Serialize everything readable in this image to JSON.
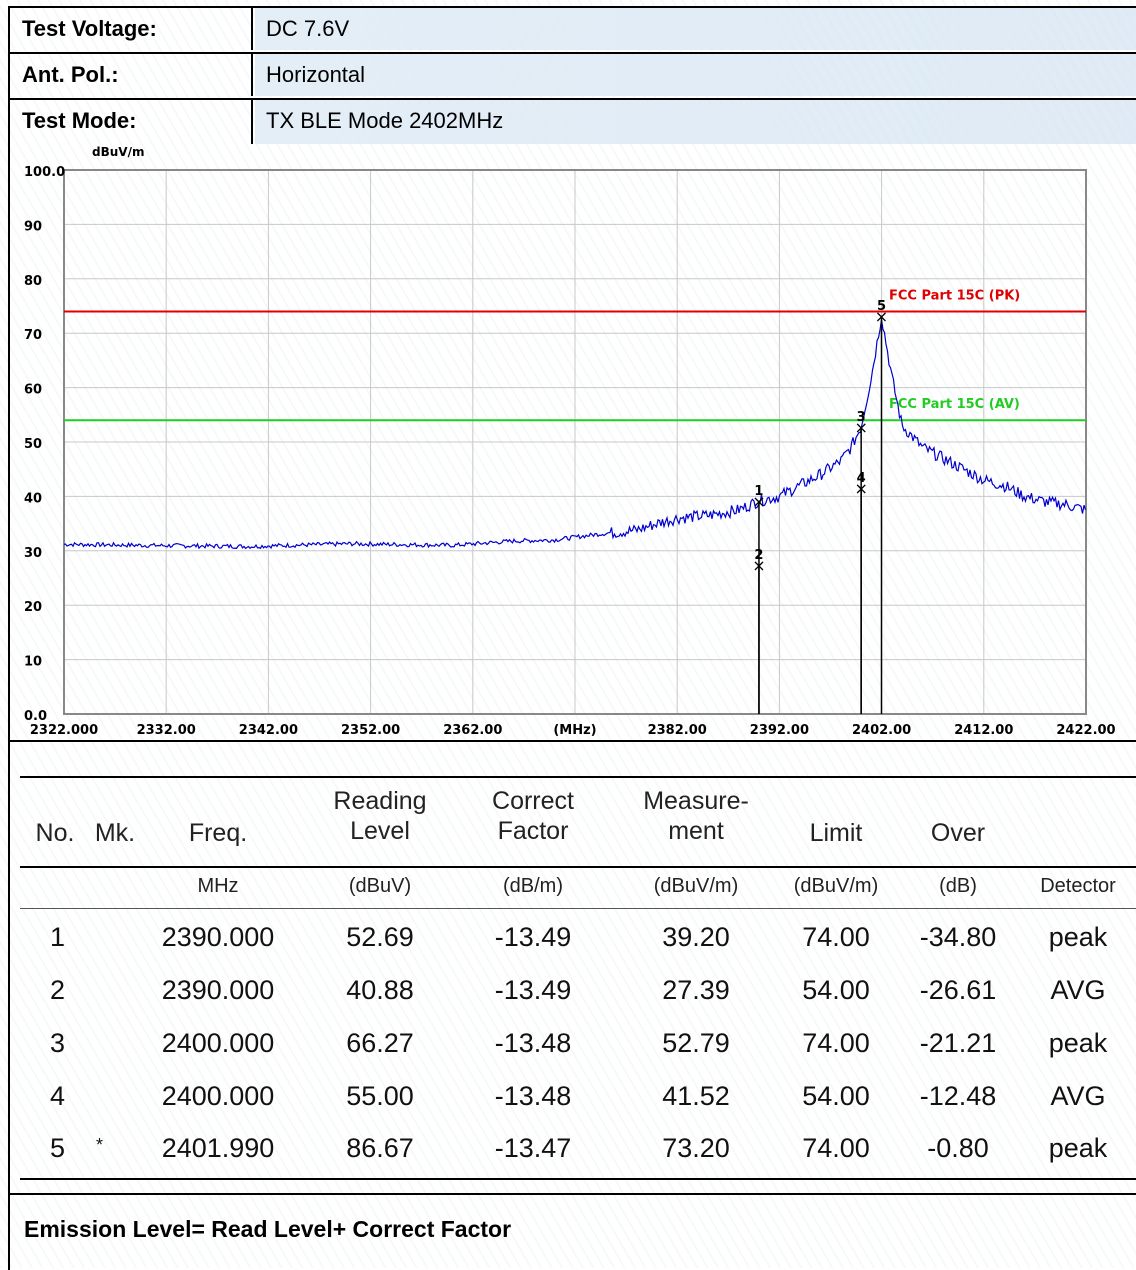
{
  "header": {
    "rows": [
      {
        "label": "Test Voltage:",
        "value": "DC 7.6V"
      },
      {
        "label": "Ant. Pol.:",
        "value": "Horizontal"
      },
      {
        "label": "Test Mode:",
        "value": "TX BLE Mode 2402MHz"
      }
    ]
  },
  "chart_data": {
    "type": "line",
    "yunit": "dBuV/m",
    "xunit": "(MHz)",
    "ylim": [
      0,
      100
    ],
    "xlim": [
      2322,
      2422
    ],
    "y_ticks": [
      "0.0",
      "10",
      "20",
      "30",
      "40",
      "50",
      "60",
      "70",
      "80",
      "90",
      "100.0"
    ],
    "x_ticks": [
      "2322.000",
      "2332.00",
      "2342.00",
      "2352.00",
      "2362.00",
      "(MHz)",
      "2382.00",
      "2392.00",
      "2402.00",
      "2412.00",
      "2422.00"
    ],
    "grid": true,
    "limit_lines": [
      {
        "name": "FCC Part 15C (PK)",
        "value": 74,
        "color": "#e00000"
      },
      {
        "name": "FCC Part 15C (AV)",
        "value": 54,
        "color": "#22cc22"
      }
    ],
    "series": [
      {
        "color": "#0000cc",
        "x": [
          2322,
          2330,
          2340,
          2350,
          2360,
          2366,
          2370,
          2374,
          2378,
          2380,
          2382,
          2385,
          2388,
          2390,
          2392,
          2394,
          2396,
          2398,
          2399,
          2400,
          2401,
          2401.99,
          2403,
          2404,
          2406,
          2408,
          2410,
          2412,
          2414,
          2416,
          2418,
          2420,
          2422
        ],
        "y": [
          31.2,
          31.0,
          30.8,
          31.3,
          31.0,
          31.8,
          32.0,
          33.0,
          33.8,
          35.0,
          36.0,
          36.5,
          37.5,
          39.2,
          40.0,
          42.0,
          44.0,
          46.5,
          49.0,
          52.8,
          62.0,
          73.2,
          62.0,
          53.0,
          49.0,
          47.0,
          45.0,
          43.0,
          42.0,
          40.0,
          39.0,
          38.5,
          37.5
        ]
      }
    ],
    "markers": [
      {
        "label": "1",
        "x": 2390.0,
        "y": 39.2
      },
      {
        "label": "2",
        "x": 2390.0,
        "y": 27.39
      },
      {
        "label": "3",
        "x": 2400.0,
        "y": 52.79
      },
      {
        "label": "4",
        "x": 2400.0,
        "y": 41.52
      },
      {
        "label": "5",
        "x": 2401.99,
        "y": 73.2
      }
    ]
  },
  "table": {
    "headers": [
      "No.",
      "Mk.",
      "Freq.",
      "Reading\nLevel",
      "Correct\nFactor",
      "Measure-\nment",
      "Limit",
      "Over",
      ""
    ],
    "units": [
      "",
      "",
      "MHz",
      "(dBuV)",
      "(dB/m)",
      "(dBuV/m)",
      "(dBuV/m)",
      "(dB)",
      "Detector"
    ],
    "rows": [
      [
        "1",
        "",
        "2390.000",
        "52.69",
        "-13.49",
        "39.20",
        "74.00",
        "-34.80",
        "peak"
      ],
      [
        "2",
        "",
        "2390.000",
        "40.88",
        "-13.49",
        "27.39",
        "54.00",
        "-26.61",
        "AVG"
      ],
      [
        "3",
        "",
        "2400.000",
        "66.27",
        "-13.48",
        "52.79",
        "74.00",
        "-21.21",
        "peak"
      ],
      [
        "4",
        "",
        "2400.000",
        "55.00",
        "-13.48",
        "41.52",
        "54.00",
        "-12.48",
        "AVG"
      ],
      [
        "5",
        "*",
        "2401.990",
        "86.67",
        "-13.47",
        "73.20",
        "74.00",
        "-0.80",
        "peak"
      ]
    ]
  },
  "footer": "Emission Level= Read Level+ Correct Factor"
}
